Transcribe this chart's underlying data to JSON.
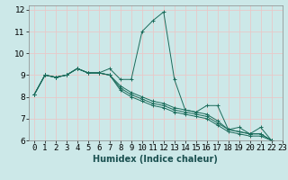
{
  "xlabel": "Humidex (Indice chaleur)",
  "bg_color": "#cce8e8",
  "grid_color": "#e8c8c8",
  "line_color": "#1a6b5a",
  "xlim": [
    -0.5,
    23
  ],
  "ylim": [
    6,
    12.2
  ],
  "xticks": [
    0,
    1,
    2,
    3,
    4,
    5,
    6,
    7,
    8,
    9,
    10,
    11,
    12,
    13,
    14,
    15,
    16,
    17,
    18,
    19,
    20,
    21,
    22,
    23
  ],
  "yticks": [
    6,
    7,
    8,
    9,
    10,
    11,
    12
  ],
  "series": [
    [
      8.1,
      9.0,
      8.9,
      9.0,
      9.3,
      9.1,
      9.1,
      9.3,
      8.8,
      8.8,
      11.0,
      11.5,
      11.9,
      8.8,
      7.4,
      7.3,
      7.6,
      7.6,
      6.5,
      6.6,
      6.3,
      6.6,
      6.0
    ],
    [
      8.1,
      9.0,
      8.9,
      9.0,
      9.3,
      9.1,
      9.1,
      9.0,
      8.5,
      8.2,
      8.0,
      7.8,
      7.7,
      7.5,
      7.4,
      7.3,
      7.2,
      6.9,
      6.5,
      6.4,
      6.3,
      6.3,
      6.0
    ],
    [
      8.1,
      9.0,
      8.9,
      9.0,
      9.3,
      9.1,
      9.1,
      9.0,
      8.4,
      8.1,
      7.9,
      7.7,
      7.6,
      7.4,
      7.3,
      7.2,
      7.1,
      6.8,
      6.5,
      6.4,
      6.3,
      6.3,
      6.0
    ],
    [
      8.1,
      9.0,
      8.9,
      9.0,
      9.3,
      9.1,
      9.1,
      9.0,
      8.3,
      8.0,
      7.8,
      7.6,
      7.5,
      7.3,
      7.2,
      7.1,
      7.0,
      6.7,
      6.4,
      6.3,
      6.2,
      6.2,
      6.0
    ]
  ],
  "xlabel_fontsize": 7,
  "tick_fontsize": 6.5,
  "xlabel_fontweight": "bold"
}
